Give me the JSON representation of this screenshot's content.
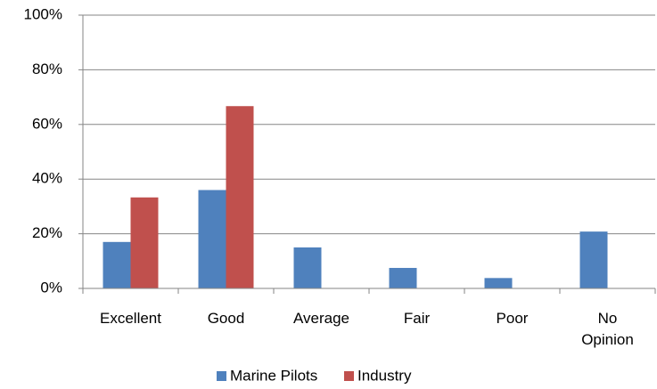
{
  "chart_data": {
    "type": "bar",
    "categories": [
      "Excellent",
      "Good",
      "Average",
      "Fair",
      "Poor",
      "No Opinion"
    ],
    "series": [
      {
        "name": "Marine Pilots",
        "color": "#4f81bd",
        "values": [
          17,
          36,
          15,
          7.5,
          3.8,
          20.8
        ]
      },
      {
        "name": "Industry",
        "color": "#c0504d",
        "values": [
          33.3,
          66.7,
          0,
          0,
          0,
          0
        ]
      }
    ],
    "ylim": [
      0,
      100
    ],
    "yticks": [
      {
        "value": 0,
        "label": "0%"
      },
      {
        "value": 20,
        "label": "20%"
      },
      {
        "value": 40,
        "label": "40%"
      },
      {
        "value": 60,
        "label": "60%"
      },
      {
        "value": 80,
        "label": "80%"
      },
      {
        "value": 100,
        "label": "100%"
      }
    ],
    "grid": true,
    "legend": "bottom"
  }
}
